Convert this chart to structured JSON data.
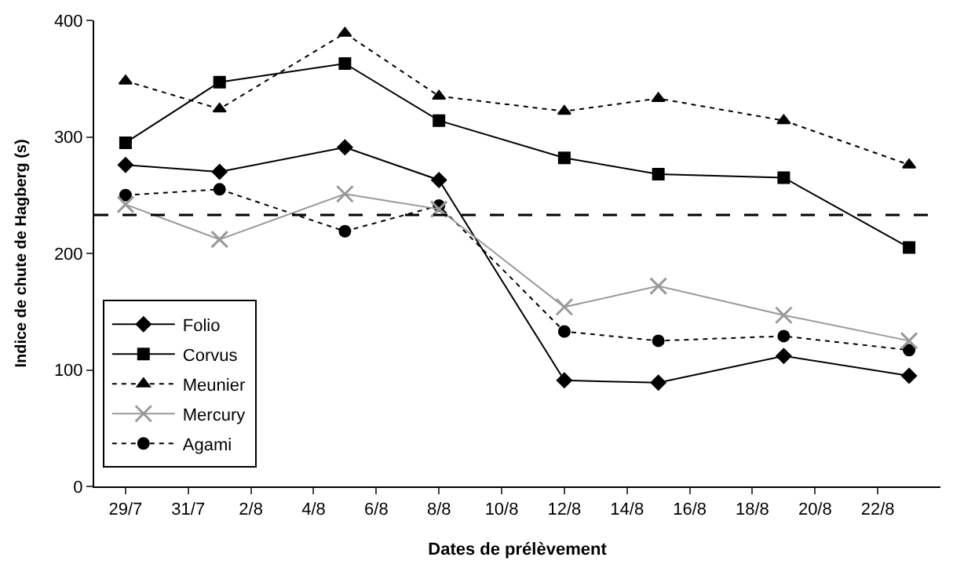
{
  "chart_data": {
    "type": "line",
    "xlabel": "Dates de prélèvement",
    "ylabel": "Indice de chute de Hagberg (s)",
    "x": [
      "--07-29",
      "--08-01",
      "--08-05",
      "--08-08",
      "--08-12",
      "--08-15",
      "--08-19",
      "--08-23"
    ],
    "series": [
      {
        "name": "Folio",
        "color": "#000000",
        "marker": "diamond",
        "line_style": "solid",
        "values": [
          276,
          270,
          291,
          263,
          91,
          89,
          112,
          95
        ]
      },
      {
        "name": "Corvus",
        "color": "#000000",
        "marker": "square",
        "line_style": "solid",
        "values": [
          295,
          347,
          363,
          314,
          282,
          268,
          265,
          205
        ]
      },
      {
        "name": "Meunier",
        "color": "#000000",
        "marker": "triangle",
        "line_style": "dotted",
        "values": [
          348,
          324,
          389,
          335,
          322,
          333,
          314,
          276
        ]
      },
      {
        "name": "Mercury",
        "color": "#999999",
        "marker": "cross",
        "line_style": "solid",
        "values": [
          242,
          212,
          251,
          238,
          154,
          172,
          147,
          125
        ]
      },
      {
        "name": "Agami",
        "color": "#000000",
        "marker": "circle",
        "line_style": "dotted",
        "values": [
          250,
          255,
          219,
          241,
          133,
          125,
          129,
          117
        ]
      }
    ],
    "ylim": [
      0,
      400
    ],
    "yticks": [
      0,
      100,
      200,
      300,
      400
    ],
    "xlim": [
      "--07-28",
      "--08-24"
    ],
    "xticks": [
      {
        "value": "--07-29",
        "label": "29/7"
      },
      {
        "value": "--07-31",
        "label": "31/7"
      },
      {
        "value": "--08-02",
        "label": "2/8"
      },
      {
        "value": "--08-04",
        "label": "4/8"
      },
      {
        "value": "--08-06",
        "label": "6/8"
      },
      {
        "value": "--08-08",
        "label": "8/8"
      },
      {
        "value": "--08-10",
        "label": "10/8"
      },
      {
        "value": "--08-12",
        "label": "12/8"
      },
      {
        "value": "--08-14",
        "label": "14/8"
      },
      {
        "value": "--08-16",
        "label": "16/8"
      },
      {
        "value": "--08-18",
        "label": "18/8"
      },
      {
        "value": "--08-20",
        "label": "20/8"
      },
      {
        "value": "--08-22",
        "label": "22/8"
      }
    ],
    "ref_lines": [
      {
        "axis": "y",
        "value": 233,
        "color": "#000000",
        "line_style": "dashed"
      }
    ],
    "grid": false,
    "legend": "bottom left"
  }
}
